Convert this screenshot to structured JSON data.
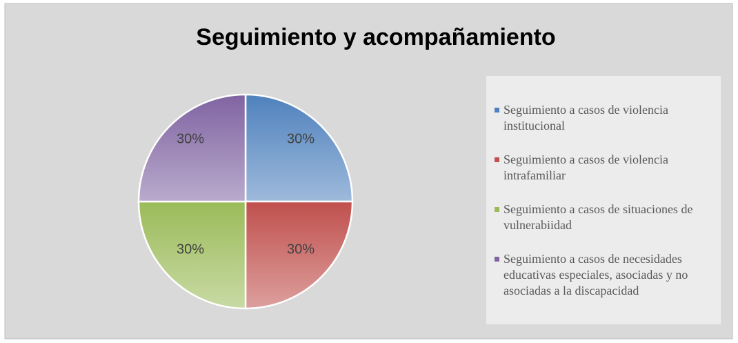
{
  "chart_data": {
    "type": "pie",
    "title": "Seguimiento y acompañamiento",
    "categories": [
      "Seguimiento a casos de violencia institucional",
      "Seguimiento a casos de violencia intrafamiliar",
      "Seguimiento a casos de situaciones de vulnerabiidad",
      "Seguimiento a casos de necesidades educativas especiales, asociadas y no asociadas a la discapacidad"
    ],
    "values": [
      30,
      30,
      30,
      30
    ],
    "value_labels": [
      "30%",
      "30%",
      "30%",
      "30%"
    ],
    "colors": [
      "#4f81bd",
      "#c0504d",
      "#9bbb59",
      "#8064a2"
    ],
    "legend": "right"
  }
}
